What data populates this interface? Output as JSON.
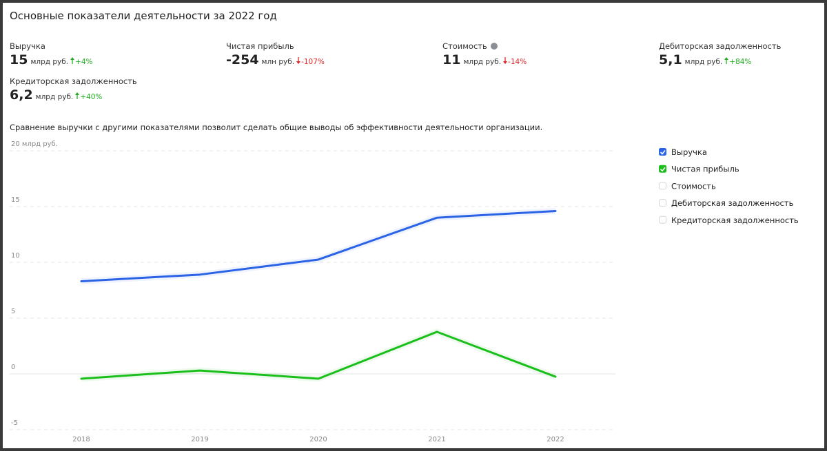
{
  "header": {
    "title": "Основные показатели деятельности за 2022 год"
  },
  "metrics": [
    {
      "label": "Выручка",
      "value": "15",
      "unit": "млрд руб.",
      "change": "+4%",
      "direction": "up"
    },
    {
      "label": "Чистая прибыль",
      "value": "-254",
      "unit": "млн руб.",
      "change": "-107%",
      "direction": "down"
    },
    {
      "label": "Стоимость",
      "value": "11",
      "unit": "млрд руб.",
      "change": "-14%",
      "direction": "down",
      "help": true
    },
    {
      "label": "Дебиторская задолженность",
      "value": "5,1",
      "unit": "млрд руб.",
      "change": "+84%",
      "direction": "up"
    },
    {
      "label": "Кредиторская задолженность",
      "value": "6,2",
      "unit": "млрд руб.",
      "change": "+40%",
      "direction": "up"
    }
  ],
  "description": "Сравнение выручки с другими показателями позволит сделать общие выводы об эффективности деятельности организации.",
  "chart_data": {
    "type": "line",
    "categories": [
      "2018",
      "2019",
      "2020",
      "2021",
      "2022"
    ],
    "series": [
      {
        "name": "Выручка",
        "color": "#2b63e6",
        "checked": true,
        "values": [
          8.3,
          8.9,
          10.25,
          14.0,
          14.6
        ]
      },
      {
        "name": "Чистая прибыль",
        "color": "#1bbf1b",
        "checked": true,
        "values": [
          -0.43,
          0.3,
          -0.43,
          3.77,
          -0.25
        ]
      }
    ],
    "hidden_series": [
      {
        "name": "Стоимость",
        "checked": false
      },
      {
        "name": "Дебиторская задолженность",
        "checked": false
      },
      {
        "name": "Кредиторская задолженность",
        "checked": false
      }
    ],
    "ylim": [
      -5,
      20
    ],
    "yticks": [
      -5,
      0,
      5,
      10,
      15,
      {
        "value": 20,
        "label": "20 млрд руб."
      }
    ],
    "grid": true
  }
}
